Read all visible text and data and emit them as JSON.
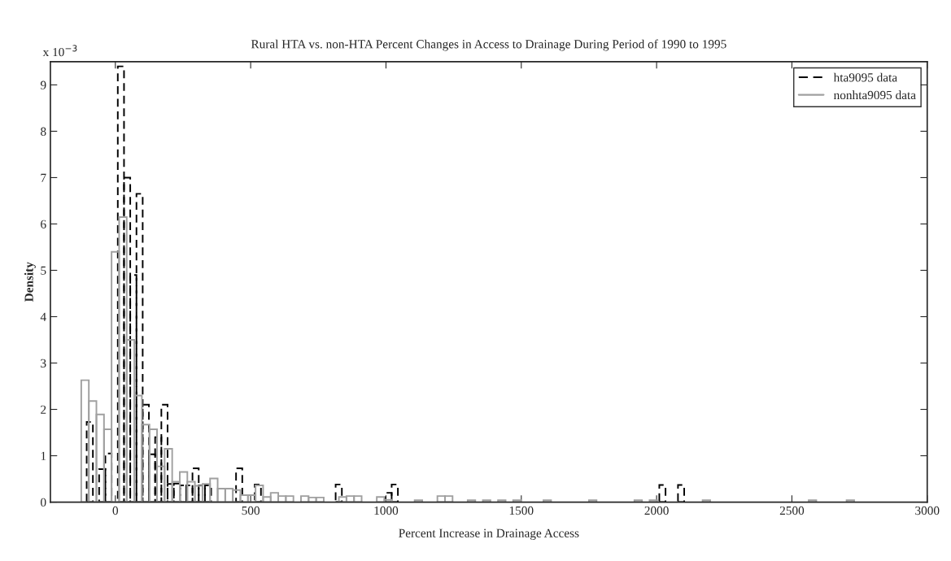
{
  "chart_data": {
    "type": "bar",
    "title": "Rural HTA vs. non-HTA Percent Changes in Access to Drainage During Period of 1990 to 1995",
    "xlabel": "Percent Increase in Drainage Access",
    "ylabel": "Density",
    "annotations": [
      "x 10$^{−3}$"
    ],
    "xlim": [
      -240,
      3000
    ],
    "xticks": [
      0,
      500,
      1000,
      1500,
      2000,
      2500,
      3000
    ],
    "ylim": [
      0,
      9.5
    ],
    "yticks": [
      0,
      1,
      2,
      3,
      4,
      5,
      6,
      7,
      8,
      9
    ],
    "grid": false,
    "legend": "top right",
    "series": [
      {
        "name": "hta9095 data",
        "color": "#000000",
        "line_style": "dashed",
        "x": [
          -94.5,
          -48.5,
          -25.5,
          20.5,
          43.5,
          66.5,
          89.5,
          112.5,
          135.5,
          158.5,
          181.5,
          204.5,
          227.5,
          250.5,
          273.5,
          296.5,
          319.5,
          342.5,
          457.5,
          526.5,
          825.5,
          1009.5,
          1032.5,
          2021.5,
          2090.5
        ],
        "values": [
          1.73,
          0.71,
          1.05,
          9.4,
          7.0,
          4.9,
          6.65,
          2.1,
          1.03,
          1.4,
          2.1,
          0.39,
          0.4,
          0.36,
          0.36,
          0.73,
          0.36,
          0.36,
          0.73,
          0.38,
          0.38,
          0.2,
          0.38,
          0.37,
          0.37
        ]
      },
      {
        "name": "nonhta9095 data",
        "color": "#a0a0a0",
        "line_style": "solid",
        "x": [
          -112,
          -84,
          -56,
          -28,
          0,
          28,
          56,
          84,
          112,
          140,
          168,
          196,
          224,
          252,
          280,
          308,
          336,
          364,
          392,
          420,
          448,
          476,
          504,
          532,
          560,
          588,
          616,
          644,
          700,
          728,
          756,
          840,
          868,
          896,
          980,
          1008,
          1120,
          1204,
          1232,
          1316,
          1372,
          1428,
          1484,
          1596,
          1764,
          1932,
          1988,
          2184,
          2576,
          2716
        ],
        "values": [
          2.63,
          2.18,
          1.89,
          1.57,
          5.4,
          6.15,
          3.5,
          2.3,
          1.67,
          1.57,
          0.77,
          1.15,
          0.44,
          0.65,
          0.44,
          0.35,
          0.39,
          0.51,
          0.29,
          0.29,
          0.26,
          0.15,
          0.15,
          0.36,
          0.11,
          0.2,
          0.13,
          0.13,
          0.13,
          0.1,
          0.1,
          0.11,
          0.13,
          0.13,
          0.11,
          0.05,
          0.04,
          0.13,
          0.13,
          0.04,
          0.04,
          0.04,
          0.04,
          0.04,
          0.04,
          0.04,
          0.04,
          0.04,
          0.04,
          0.04
        ]
      }
    ]
  }
}
